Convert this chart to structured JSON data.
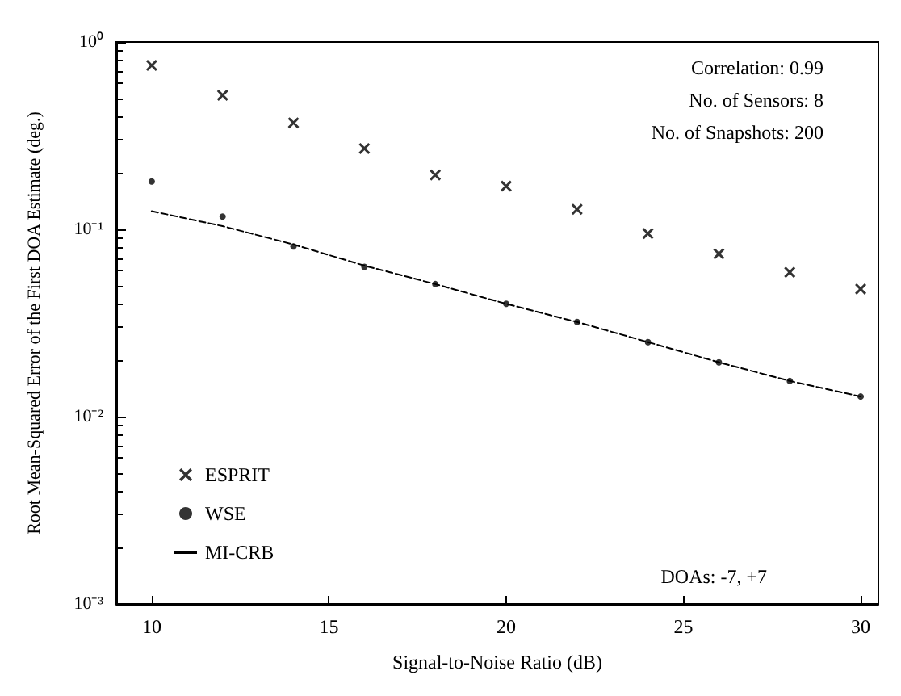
{
  "chart_data": {
    "type": "scatter",
    "xlabel": "Signal-to-Noise Ratio (dB)",
    "ylabel": "Root Mean-Squared Error of the First DOA Estimate (deg.)",
    "x": [
      10,
      12,
      14,
      16,
      18,
      20,
      22,
      24,
      26,
      28,
      30
    ],
    "series": [
      {
        "name": "ESPRIT",
        "marker": "cross",
        "color": "#000000",
        "values": [
          0.75,
          0.52,
          0.37,
          0.27,
          0.195,
          0.17,
          0.128,
          0.095,
          0.074,
          0.059,
          0.048
        ]
      },
      {
        "name": "WSE",
        "marker": "circle",
        "color": "#000000",
        "values": [
          0.18,
          0.117,
          0.081,
          0.063,
          0.051,
          0.04,
          0.032,
          0.025,
          0.0195,
          0.0155,
          0.0128
        ]
      },
      {
        "name": "MI-CRB",
        "type": "line",
        "marker": "none",
        "line_style": "dashed",
        "color": "#000000",
        "values": [
          0.125,
          0.104,
          0.083,
          0.064,
          0.051,
          0.04,
          0.032,
          0.025,
          0.0195,
          0.0155,
          0.0128
        ]
      }
    ],
    "xlim": [
      9,
      30.5
    ],
    "xticks": [
      10,
      15,
      20,
      25,
      30
    ],
    "ylim": [
      0.001,
      1
    ],
    "yticks": [
      {
        "value": 0.001,
        "label": "10⁻³"
      },
      {
        "value": 0.01,
        "label": "10⁻²"
      },
      {
        "value": 0.1,
        "label": "10⁻¹"
      },
      {
        "value": 1,
        "label": "10⁰"
      }
    ],
    "log": "y",
    "grid": false,
    "legend": "bottom left",
    "annotations": [
      "Correlation: 0.99",
      "No. of Sensors: 8",
      "No. of Snapshots: 200",
      "DOAs: -7, +7"
    ]
  }
}
